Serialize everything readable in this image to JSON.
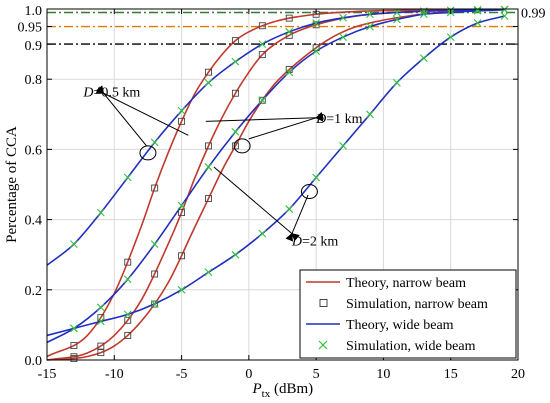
{
  "chart_data": {
    "type": "line",
    "xlabel_main": "P",
    "xlabel_sub": "tx",
    "xlabel_unit": " (dBm)",
    "ylabel": "Percentage of CCA",
    "xlim": [
      -15,
      20
    ],
    "ylim": [
      0,
      1.0
    ],
    "xticks": [
      -15,
      -10,
      -5,
      0,
      5,
      10,
      15,
      20
    ],
    "yticks": [
      0.0,
      0.2,
      0.4,
      0.6,
      0.8,
      0.9,
      0.95,
      1.0
    ],
    "ytick_labels": [
      "0.0",
      "0.2",
      "0.4",
      "0.6",
      "0.8",
      "0.9",
      "0.95",
      "1.0"
    ],
    "right_label": "0.99",
    "reference_lines": [
      {
        "y": 0.99,
        "color": "#2e7d32",
        "style": "dashdot"
      },
      {
        "y": 0.95,
        "color": "#e07b00",
        "style": "dashdot"
      },
      {
        "y": 0.9,
        "color": "#000000",
        "style": "dashdot"
      }
    ],
    "grid": true,
    "legend_position": "bottom-right",
    "legend": [
      {
        "label": "Theory,  narrow beam",
        "kind": "line",
        "color": "#c0392b"
      },
      {
        "label": "Simulation, narrow beam",
        "kind": "square",
        "color": "#333333"
      },
      {
        "label": "Theory, wide beam",
        "kind": "line",
        "color": "#1f2fbf"
      },
      {
        "label": "Simulation, wide beam",
        "kind": "x",
        "color": "#33c040"
      }
    ],
    "annotations": [
      "D=0.5 km",
      "D=1 km",
      "D=2 km"
    ],
    "series": [
      {
        "beam": "narrow",
        "D": "0.5 km",
        "color": "#c0392b",
        "x": [
          -15,
          -12,
          -10,
          -8,
          -7,
          -6,
          -5,
          -4,
          -3,
          -2,
          -1,
          0,
          2,
          5,
          8,
          11,
          14,
          17,
          19
        ],
        "y": [
          0.01,
          0.07,
          0.19,
          0.38,
          0.49,
          0.59,
          0.68,
          0.76,
          0.82,
          0.87,
          0.91,
          0.935,
          0.965,
          0.985,
          0.993,
          0.996,
          0.998,
          0.999,
          0.999
        ]
      },
      {
        "beam": "narrow",
        "D": "1 km",
        "color": "#c0392b",
        "x": [
          -15,
          -12,
          -10,
          -8,
          -6,
          -5,
          -4,
          -3,
          -2,
          -1,
          0,
          1,
          3,
          5,
          8,
          11,
          14,
          17,
          19
        ],
        "y": [
          0.0,
          0.02,
          0.07,
          0.17,
          0.33,
          0.42,
          0.52,
          0.61,
          0.69,
          0.76,
          0.82,
          0.87,
          0.925,
          0.955,
          0.98,
          0.99,
          0.995,
          0.998,
          0.999
        ]
      },
      {
        "beam": "narrow",
        "D": "2 km",
        "color": "#c0392b",
        "x": [
          -15,
          -12,
          -10,
          -8,
          -6,
          -4,
          -3,
          -2,
          -1,
          0,
          1,
          2,
          4,
          6,
          8,
          11,
          14,
          17,
          19
        ],
        "y": [
          0.0,
          0.01,
          0.04,
          0.11,
          0.22,
          0.38,
          0.46,
          0.54,
          0.61,
          0.68,
          0.74,
          0.79,
          0.86,
          0.915,
          0.95,
          0.975,
          0.99,
          0.995,
          0.998
        ]
      },
      {
        "beam": "wide",
        "D": "0.5 km",
        "color": "#1f2fbf",
        "x": [
          -15,
          -13,
          -11,
          -9,
          -7,
          -5,
          -3,
          -1,
          1,
          3,
          5,
          7,
          9,
          11,
          13,
          15,
          17,
          19
        ],
        "y": [
          0.27,
          0.33,
          0.42,
          0.52,
          0.62,
          0.71,
          0.79,
          0.85,
          0.9,
          0.935,
          0.96,
          0.975,
          0.985,
          0.99,
          0.994,
          0.996,
          0.998,
          0.999
        ]
      },
      {
        "beam": "wide",
        "D": "1 km",
        "color": "#1f2fbf",
        "x": [
          -15,
          -13,
          -11,
          -9,
          -7,
          -5,
          -3,
          -1,
          1,
          3,
          5,
          7,
          9,
          11,
          13,
          15,
          17,
          19
        ],
        "y": [
          0.05,
          0.09,
          0.15,
          0.23,
          0.33,
          0.44,
          0.55,
          0.65,
          0.74,
          0.82,
          0.88,
          0.92,
          0.95,
          0.97,
          0.985,
          0.99,
          0.995,
          0.998
        ]
      },
      {
        "beam": "wide",
        "D": "2 km",
        "color": "#1f2fbf",
        "x": [
          -15,
          -13,
          -11,
          -9,
          -7,
          -5,
          -3,
          -1,
          1,
          3,
          5,
          7,
          9,
          11,
          13,
          15,
          17,
          19
        ],
        "y": [
          0.07,
          0.09,
          0.11,
          0.13,
          0.16,
          0.2,
          0.25,
          0.3,
          0.36,
          0.43,
          0.52,
          0.61,
          0.7,
          0.79,
          0.86,
          0.92,
          0.96,
          0.98
        ]
      }
    ],
    "simulation_points": {
      "narrow_x": [
        -13,
        -11,
        -9,
        -7,
        -5,
        -3,
        -1,
        1,
        3,
        5
      ],
      "wide_x": [
        -13,
        -11,
        -9,
        -7,
        -5,
        -3,
        -1,
        1,
        3,
        5,
        7,
        9,
        11,
        13,
        15,
        17,
        19
      ]
    }
  }
}
